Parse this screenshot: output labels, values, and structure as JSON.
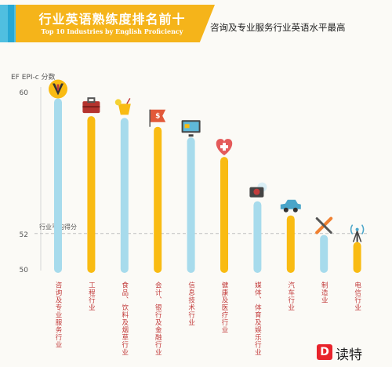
{
  "banner": {
    "title": "行业英语熟练度排名前十",
    "subtitle": "Top 10 Industries by English Proficiency"
  },
  "headline": "咨询及专业服务行业英语水平最高",
  "watermark": "读特",
  "colors": {
    "blue": "#a7dbec",
    "orange": "#f9bb12",
    "label": "#c23b3b",
    "refline": "#bfbfbf"
  },
  "chart_data": {
    "type": "bar",
    "ylabel": "EF EPI-c 分数",
    "ylim": [
      50,
      60
    ],
    "yticks": [
      60,
      52,
      50
    ],
    "reference": {
      "label": "行业平均得分",
      "value": 52
    },
    "categories": [
      "咨询及专业服务行业",
      "工程行业",
      "食品、饮料及烟草行业",
      "会计、银行及金融行业",
      "信息技术行业",
      "健康及医疗行业",
      "媒体、体育及娱乐行业",
      "汽车行业",
      "制造业",
      "电信行业"
    ],
    "values": [
      59.4,
      58.4,
      58.3,
      57.8,
      57.2,
      56.1,
      53.6,
      52.8,
      51.7,
      51.3
    ],
    "icons": [
      "suit-icon",
      "briefcase-icon",
      "drink-icon",
      "money-flag-icon",
      "computer-icon",
      "medical-heart-icon",
      "camera-icon",
      "car-icon",
      "wrench-icon",
      "antenna-icon"
    ],
    "bar_colors": [
      "blue",
      "orange",
      "blue",
      "orange",
      "blue",
      "orange",
      "blue",
      "orange",
      "blue",
      "orange"
    ]
  }
}
